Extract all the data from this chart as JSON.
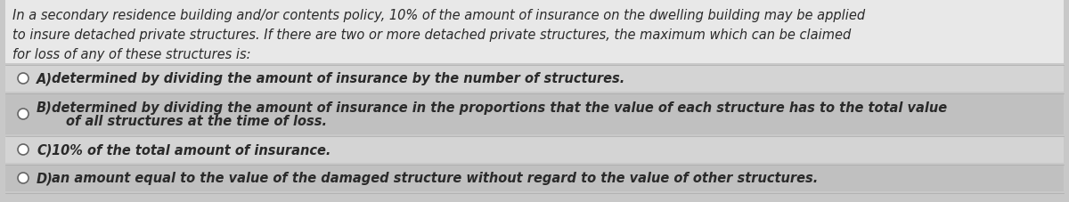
{
  "background_color": "#c8c8c8",
  "question_bg": "#e8e8e8",
  "question_text_lines": [
    "In a secondary residence building and/or contents policy, 10% of the amount of insurance on the dwelling building may be applied",
    "to insure detached private structures. If there are two or more detached private structures, the maximum which can be claimed",
    "for loss of any of these structures is:"
  ],
  "options": [
    {
      "label": "A)",
      "line1": "determined by dividing the amount of insurance by the number of structures.",
      "line2": null
    },
    {
      "label": "B)",
      "line1": "determined by dividing the amount of insurance in the proportions that the value of each structure has to the total value",
      "line2": "of all structures at the time of loss."
    },
    {
      "label": "C)",
      "line1": "10% of the total amount of insurance.",
      "line2": null
    },
    {
      "label": "D)",
      "line1": "an amount equal to the value of the damaged structure without regard to the value of other structures.",
      "line2": null
    }
  ],
  "option_colors": [
    "#d4d4d4",
    "#c0c0c0",
    "#d4d4d4",
    "#c0c0c0"
  ],
  "font_size_question": 10.5,
  "font_size_option": 10.5,
  "text_color": "#2a2a2a"
}
